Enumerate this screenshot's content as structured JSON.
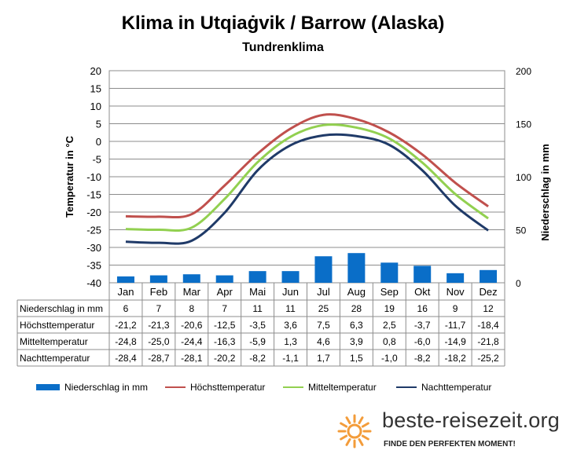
{
  "title": "Klima in Utqiaġvik / Barrow (Alaska)",
  "subtitle": "Tundrenklima",
  "brand": {
    "name": "beste-reisezeit.org",
    "tagline": "FINDE DEN PERFEKTEN MOMENT!",
    "sun_color": "#f39c3a"
  },
  "chart_data": {
    "type": "bar+line",
    "categories": [
      "Jan",
      "Feb",
      "Mar",
      "Apr",
      "Mai",
      "Jun",
      "Jul",
      "Aug",
      "Sep",
      "Okt",
      "Nov",
      "Dez"
    ],
    "ylabel_left": "Temperatur in °C",
    "ylabel_right": "Niederschlag in mm",
    "ylim_left": [
      -40,
      20
    ],
    "yticks_left": [
      20,
      15,
      10,
      5,
      0,
      -5,
      -10,
      -15,
      -20,
      -25,
      -30,
      -35,
      -40
    ],
    "ylim_right": [
      0,
      200
    ],
    "yticks_right": [
      200,
      150,
      100,
      50,
      0
    ],
    "grid": true,
    "legend_position": "bottom",
    "series": [
      {
        "name": "Niederschlag in mm",
        "kind": "bar",
        "axis": "right",
        "color": "#0a6ec8",
        "values": [
          6,
          7,
          8,
          7,
          11,
          11,
          25,
          28,
          19,
          16,
          9,
          12
        ]
      },
      {
        "name": "Höchsttemperatur",
        "kind": "line",
        "axis": "left",
        "color": "#c0504d",
        "values": [
          -21.2,
          -21.3,
          -20.6,
          -12.5,
          -3.5,
          3.6,
          7.5,
          6.3,
          2.5,
          -3.7,
          -11.7,
          -18.4
        ]
      },
      {
        "name": "Mitteltemperatur",
        "kind": "line",
        "axis": "left",
        "color": "#92d050",
        "values": [
          -24.8,
          -25.0,
          -24.4,
          -16.3,
          -5.9,
          1.3,
          4.6,
          3.9,
          0.8,
          -6.0,
          -14.9,
          -21.8
        ]
      },
      {
        "name": "Nachttemperatur",
        "kind": "line",
        "axis": "left",
        "color": "#1f3a68",
        "values": [
          -28.4,
          -28.7,
          -28.1,
          -20.2,
          -8.2,
          -1.1,
          1.7,
          1.5,
          -1.0,
          -8.2,
          -18.2,
          -25.2
        ]
      }
    ],
    "table": {
      "rows": [
        {
          "label": "Niederschlag in mm",
          "cells": [
            "6",
            "7",
            "8",
            "7",
            "11",
            "11",
            "25",
            "28",
            "19",
            "16",
            "9",
            "12"
          ]
        },
        {
          "label": "Höchsttemperatur",
          "cells": [
            "-21,2",
            "-21,3",
            "-20,6",
            "-12,5",
            "-3,5",
            "3,6",
            "7,5",
            "6,3",
            "2,5",
            "-3,7",
            "-11,7",
            "-18,4"
          ]
        },
        {
          "label": "Mitteltemperatur",
          "cells": [
            "-24,8",
            "-25,0",
            "-24,4",
            "-16,3",
            "-5,9",
            "1,3",
            "4,6",
            "3,9",
            "0,8",
            "-6,0",
            "-14,9",
            "-21,8"
          ]
        },
        {
          "label": "Nachttemperatur",
          "cells": [
            "-28,4",
            "-28,7",
            "-28,1",
            "-20,2",
            "-8,2",
            "-1,1",
            "1,7",
            "1,5",
            "-1,0",
            "-8,2",
            "-18,2",
            "-25,2"
          ]
        }
      ]
    }
  }
}
